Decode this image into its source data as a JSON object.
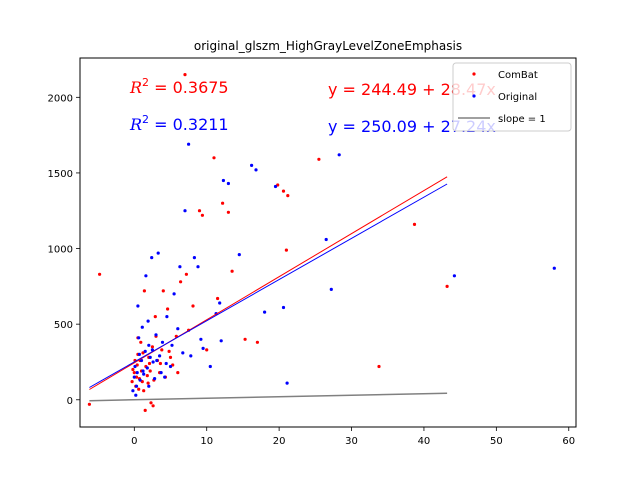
{
  "chart_data": {
    "type": "scatter",
    "title": "original_glszm_HighGrayLevelZoneEmphasis",
    "xlabel": "",
    "ylabel": "",
    "xlim": [
      -7.5,
      61
    ],
    "ylim": [
      -180,
      2260
    ],
    "xticks": [
      0,
      10,
      20,
      30,
      40,
      50,
      60
    ],
    "yticks": [
      0,
      500,
      1000,
      1500,
      2000
    ],
    "grid": false,
    "legend_position": "top-right",
    "legend": [
      {
        "label": "ComBat",
        "marker": "dot",
        "color": "#ff0000"
      },
      {
        "label": "Original",
        "marker": "dot",
        "color": "#0000ff"
      },
      {
        "label": "slope = 1",
        "marker": "line",
        "color": "#808080"
      }
    ],
    "annotations": {
      "combat_r2": "R^2 = 0.3675",
      "original_r2": "R^2 = 0.3211",
      "combat_eq": "y = 244.49 + 28.47x",
      "original_eq": "y = 250.09 + 27.24x"
    },
    "series": [
      {
        "name": "ComBat",
        "color": "#ff0000",
        "x": [
          -6.2,
          -4.8,
          -0.3,
          -0.2,
          0.0,
          0.1,
          0.2,
          0.3,
          0.4,
          0.5,
          0.6,
          0.7,
          0.8,
          1.0,
          1.1,
          1.2,
          1.3,
          1.5,
          1.6,
          1.8,
          2.0,
          2.1,
          2.3,
          2.5,
          2.7,
          3.0,
          3.2,
          3.5,
          3.8,
          4.0,
          4.3,
          4.6,
          5.0,
          5.3,
          5.8,
          6.4,
          7.0,
          7.5,
          8.1,
          9.0,
          9.4,
          10.0,
          11.0,
          11.5,
          12.2,
          13.0,
          13.5,
          15.3,
          17.0,
          19.8,
          20.6,
          21.0,
          21.2,
          25.5,
          33.8,
          38.7,
          43.2,
          0.5,
          1.4,
          2.2,
          2.9,
          3.6,
          4.8,
          6.0,
          7.2,
          1.9,
          2.6,
          0.9
        ],
        "y": [
          -30,
          830,
          120,
          200,
          180,
          260,
          90,
          150,
          230,
          300,
          70,
          140,
          260,
          190,
          120,
          310,
          60,
          -70,
          220,
          160,
          280,
          240,
          -20,
          350,
          130,
          420,
          260,
          180,
          330,
          720,
          150,
          600,
          280,
          230,
          420,
          780,
          2150,
          460,
          620,
          1250,
          1220,
          330,
          1600,
          670,
          1300,
          1240,
          850,
          400,
          380,
          1420,
          1380,
          990,
          1350,
          1590,
          220,
          1160,
          750,
          410,
          720,
          190,
          550,
          240,
          320,
          180,
          830,
          110,
          -40,
          380
        ]
      },
      {
        "name": "Original",
        "color": "#0000ff",
        "x": [
          -0.2,
          0.0,
          0.1,
          0.3,
          0.4,
          0.5,
          0.7,
          0.8,
          1.0,
          1.1,
          1.3,
          1.5,
          1.6,
          1.8,
          2.0,
          2.2,
          2.4,
          2.6,
          2.8,
          3.0,
          3.3,
          3.5,
          3.9,
          4.2,
          4.5,
          5.0,
          5.5,
          6.0,
          6.7,
          7.0,
          7.5,
          8.3,
          8.8,
          9.5,
          10.5,
          11.3,
          12.3,
          13.0,
          14.5,
          16.2,
          16.8,
          18.0,
          19.5,
          20.6,
          21.1,
          26.5,
          27.2,
          28.3,
          44.2,
          58.0,
          0.6,
          1.2,
          1.9,
          2.5,
          3.1,
          3.7,
          4.4,
          5.2,
          6.3,
          7.8,
          9.2,
          11.8,
          0.2,
          2.0,
          12.0
        ],
        "y": [
          60,
          150,
          220,
          90,
          180,
          620,
          300,
          130,
          260,
          480,
          170,
          320,
          820,
          210,
          360,
          280,
          940,
          250,
          140,
          430,
          970,
          290,
          380,
          150,
          550,
          220,
          700,
          470,
          310,
          1250,
          1690,
          940,
          880,
          340,
          220,
          570,
          1450,
          1430,
          960,
          1550,
          1520,
          580,
          1410,
          610,
          110,
          1060,
          730,
          1620,
          820,
          870,
          410,
          190,
          520,
          330,
          260,
          180,
          240,
          360,
          880,
          290,
          400,
          640,
          30,
          90,
          390
        ]
      }
    ],
    "fit_lines": [
      {
        "name": "ComBat fit",
        "color": "#ff0000",
        "intercept": 244.49,
        "slope": 28.47,
        "x_range": [
          -6.2,
          43.2
        ]
      },
      {
        "name": "Original fit",
        "color": "#0000ff",
        "intercept": 250.09,
        "slope": 27.24,
        "x_range": [
          -6.2,
          43.2
        ]
      },
      {
        "name": "slope = 1",
        "color": "#808080",
        "intercept": 0,
        "slope": 1,
        "x_range": [
          -6.2,
          43.2
        ]
      }
    ]
  }
}
